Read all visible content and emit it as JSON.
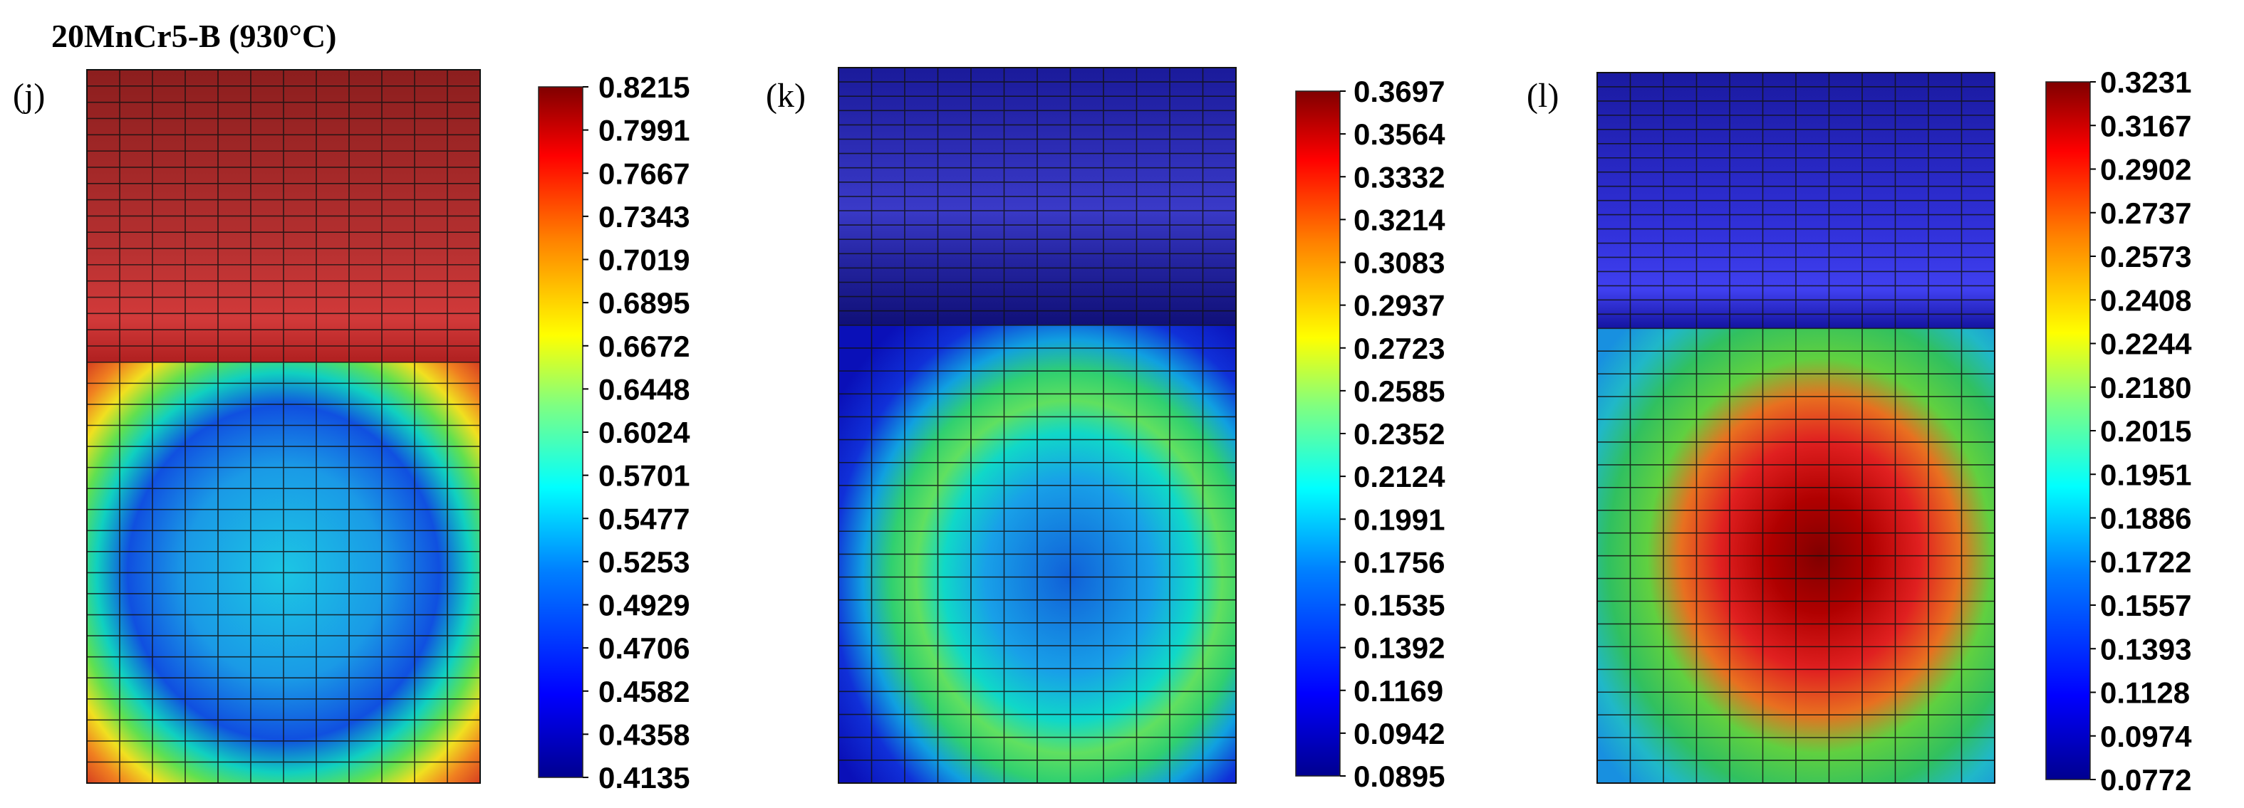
{
  "title": "20MnCr5-B (930°C)",
  "panels": [
    {
      "label": "(j)",
      "colorbar_ticks": [
        "0.8215",
        "0.7991",
        "0.7667",
        "0.7343",
        "0.7019",
        "0.6895",
        "0.6672",
        "0.6448",
        "0.6024",
        "0.5701",
        "0.5477",
        "0.5253",
        "0.4929",
        "0.4706",
        "0.4582",
        "0.4358",
        "0.4135"
      ]
    },
    {
      "label": "(k)",
      "colorbar_ticks": [
        "0.3697",
        "0.3564",
        "0.3332",
        "0.3214",
        "0.3083",
        "0.2937",
        "0.2723",
        "0.2585",
        "0.2352",
        "0.2124",
        "0.1991",
        "0.1756",
        "0.1535",
        "0.1392",
        "0.1169",
        "0.0942",
        "0.0895"
      ]
    },
    {
      "label": "(l)",
      "colorbar_ticks": [
        "0.3231",
        "0.3167",
        "0.2902",
        "0.2737",
        "0.2573",
        "0.2408",
        "0.2244",
        "0.2180",
        "0.2015",
        "0.1951",
        "0.1886",
        "0.1722",
        "0.1557",
        "0.1393",
        "0.1128",
        "0.0974",
        "0.0772"
      ]
    }
  ],
  "colormap": [
    "#00008f",
    "#0000ff",
    "#0080ff",
    "#00ffff",
    "#80ff80",
    "#ffff00",
    "#ff8000",
    "#ff0000",
    "#800000"
  ]
}
